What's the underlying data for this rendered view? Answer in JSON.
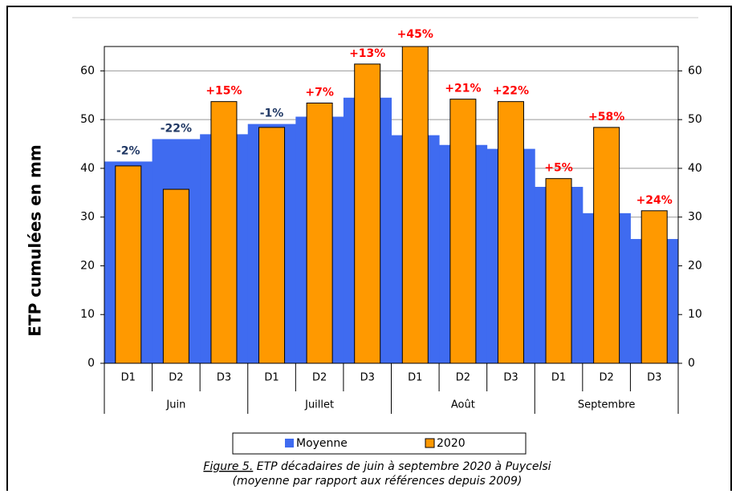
{
  "chart_data": {
    "type": "bar",
    "y_label": "ETP cumulées en mm",
    "categories": [
      "D1",
      "D2",
      "D3",
      "D1",
      "D2",
      "D3",
      "D1",
      "D2",
      "D3",
      "D1",
      "D2",
      "D3"
    ],
    "groups": [
      "Juin",
      "Juillet",
      "Août",
      "Septembre"
    ],
    "series": [
      {
        "name": "Moyenne",
        "color": "#3f6bf0",
        "values": [
          41.4,
          46,
          47,
          49.1,
          50.6,
          54.5,
          46.8,
          44.8,
          44,
          36.2,
          30.8,
          25.5
        ]
      },
      {
        "name": "2020",
        "color": "#ff9900",
        "values": [
          40.5,
          35.7,
          53.7,
          48.4,
          53.4,
          61.4,
          67.9,
          54.2,
          53.7,
          37.9,
          48.4,
          31.3
        ]
      }
    ],
    "pct_labels": [
      {
        "text": "-2%",
        "color": "#203864"
      },
      {
        "text": "-22%",
        "color": "#203864"
      },
      {
        "text": "+15%",
        "color": "#ff0000"
      },
      {
        "text": "-1%",
        "color": "#203864"
      },
      {
        "text": "+7%",
        "color": "#ff0000"
      },
      {
        "text": "+13%",
        "color": "#ff0000"
      },
      {
        "text": "+45%",
        "color": "#ff0000"
      },
      {
        "text": "+21%",
        "color": "#ff0000"
      },
      {
        "text": "+22%",
        "color": "#ff0000"
      },
      {
        "text": "+5%",
        "color": "#ff0000"
      },
      {
        "text": "+58%",
        "color": "#ff0000"
      },
      {
        "text": "+24%",
        "color": "#ff0000"
      }
    ],
    "ylim": [
      0,
      65
    ],
    "yticks": [
      0,
      10,
      20,
      30,
      40,
      50,
      60
    ],
    "y2lim": [
      0,
      65
    ],
    "y2ticks": [
      0,
      10,
      20,
      30,
      40,
      50,
      60
    ],
    "grid": true,
    "caption": {
      "figure": "Figure 5.",
      "line1": " ETP décadaires de juin à septembre 2020 à Puycelsi",
      "line2": "(moyenne par rapport aux références depuis 2009)"
    }
  }
}
